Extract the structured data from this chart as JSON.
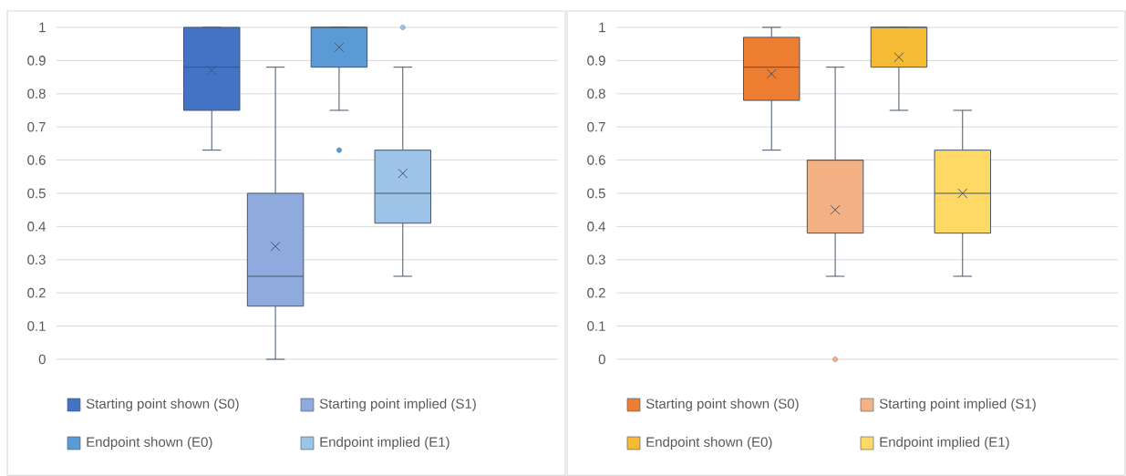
{
  "chart_data": [
    {
      "type": "box",
      "categories": [
        null
      ],
      "ylim": [
        0,
        1
      ],
      "yticks": [
        0,
        0.1,
        0.2,
        0.3,
        0.4,
        0.5,
        0.6,
        0.7,
        0.8,
        0.9,
        1
      ],
      "grid": "y",
      "legend": "bottom",
      "tick_labels": "y",
      "marker": "cross",
      "series": [
        {
          "name": "Starting point shown (S0)",
          "color": "#4472c4",
          "boxes": [
            {
              "low": 0.63,
              "q1": 0.75,
              "median": 0.88,
              "q3": 1,
              "high": 1,
              "mean": 0.87
            }
          ]
        },
        {
          "name": "Starting point implied (S1)",
          "color": "#8faadc",
          "boxes": [
            {
              "low": 0,
              "q1": 0.16,
              "median": 0.25,
              "q3": 0.5,
              "high": 0.88,
              "mean": 0.34
            }
          ]
        },
        {
          "name": "Endpoint shown (E0)",
          "color": "#5b9bd5",
          "boxes": [
            {
              "low": 0.75,
              "q1": 0.88,
              "median": 1,
              "q3": 1,
              "high": 1,
              "mean": 0.94,
              "outliers": [
                0.63
              ]
            }
          ]
        },
        {
          "name": "Endpoint implied (E1)",
          "color": "#9dc3e6",
          "boxes": [
            {
              "low": 0.25,
              "q1": 0.41,
              "median": 0.5,
              "q3": 0.63,
              "high": 0.88,
              "mean": 0.56,
              "outliers": [
                1
              ]
            }
          ]
        }
      ]
    },
    {
      "type": "box",
      "categories": [
        null
      ],
      "ylim": [
        0,
        1
      ],
      "yticks": [
        0,
        0.1,
        0.2,
        0.3,
        0.4,
        0.5,
        0.6,
        0.7,
        0.8,
        0.9,
        1
      ],
      "grid": "y",
      "legend": "bottom",
      "tick_labels": "y",
      "marker": "cross",
      "series": [
        {
          "name": "Starting point shown (S0)",
          "color": "#ed7d31",
          "boxes": [
            {
              "low": 0.63,
              "q1": 0.78,
              "median": 0.88,
              "q3": 0.97,
              "high": 1,
              "mean": 0.86
            }
          ]
        },
        {
          "name": "Starting point implied (S1)",
          "color": "#f4b183",
          "boxes": [
            {
              "low": 0.25,
              "q1": 0.38,
              "median": 0.6,
              "q3": 0.6,
              "high": 0.88,
              "mean": 0.45,
              "outliers": [
                0
              ]
            }
          ]
        },
        {
          "name": "Endpoint shown (E0)",
          "color": "#f6bb34",
          "boxes": [
            {
              "low": 0.75,
              "q1": 0.88,
              "median": 1,
              "q3": 1,
              "high": 1,
              "mean": 0.91
            }
          ]
        },
        {
          "name": "Endpoint implied (E1)",
          "color": "#ffd966",
          "boxes": [
            {
              "low": 0.25,
              "q1": 0.38,
              "median": 0.5,
              "q3": 0.63,
              "high": 0.75,
              "mean": 0.5
            }
          ]
        }
      ]
    }
  ]
}
